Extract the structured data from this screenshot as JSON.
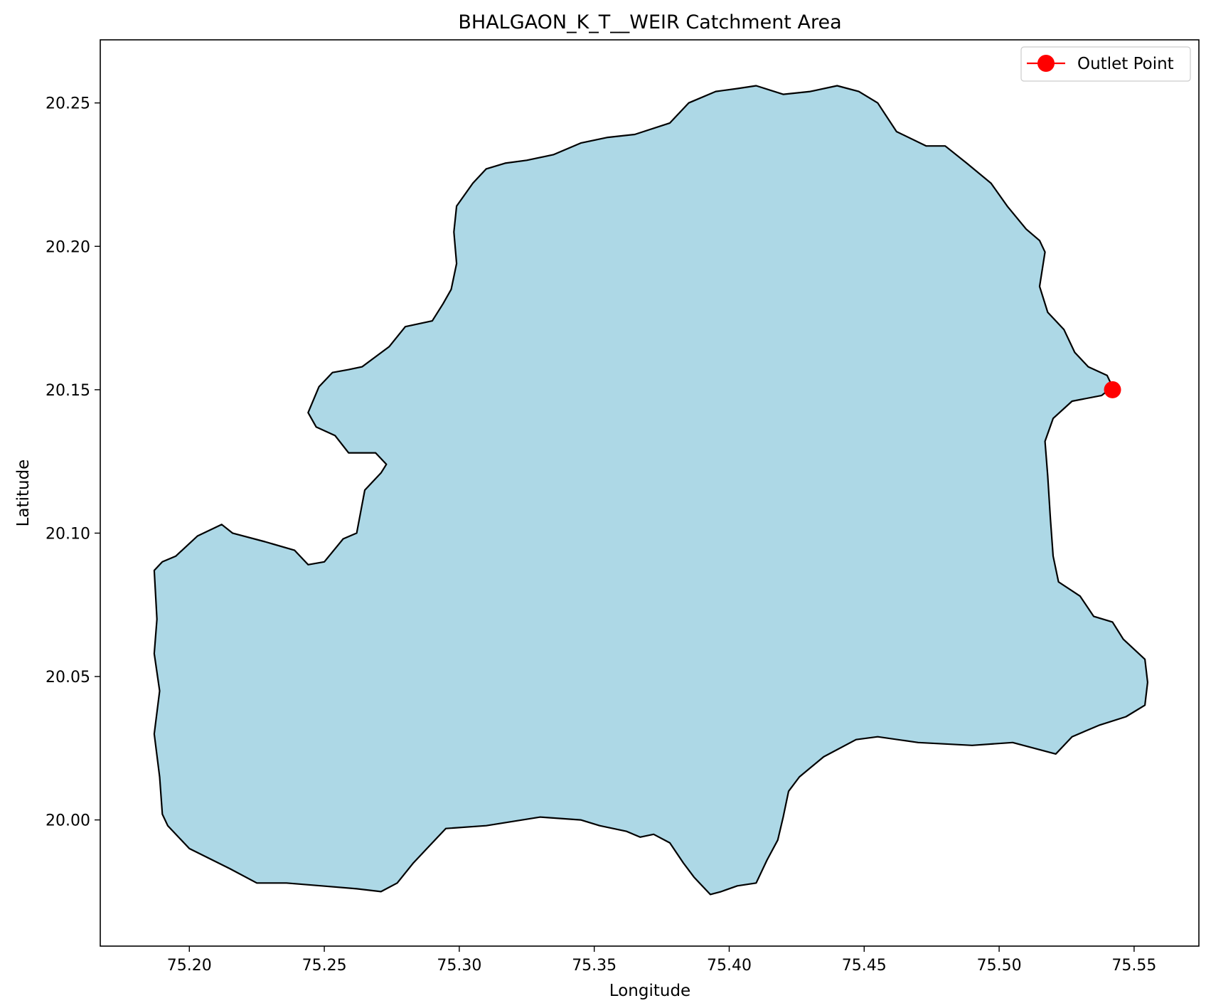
{
  "chart_data": {
    "type": "map",
    "title": "BHALGAON_K_T__WEIR Catchment Area",
    "xlabel": "Longitude",
    "ylabel": "Latitude",
    "xlim": [
      75.167,
      75.574
    ],
    "ylim": [
      19.956,
      20.272
    ],
    "x_ticks": [
      75.2,
      75.25,
      75.3,
      75.35,
      75.4,
      75.45,
      75.5,
      75.55
    ],
    "x_tick_labels": [
      "75.20",
      "75.25",
      "75.30",
      "75.35",
      "75.40",
      "75.45",
      "75.50",
      "75.55"
    ],
    "y_ticks": [
      20.0,
      20.05,
      20.1,
      20.15,
      20.2,
      20.25
    ],
    "y_tick_labels": [
      "20.00",
      "20.05",
      "20.10",
      "20.15",
      "20.20",
      "20.25"
    ],
    "grid": false,
    "legend_position": "top-right",
    "legend": [
      {
        "label": "Outlet Point",
        "color": "#ff0000",
        "marker": "circle"
      }
    ],
    "catchment": {
      "fill_color": "#add8e6",
      "edge_color": "#000000",
      "boundary": [
        [
          75.187,
          20.087
        ],
        [
          75.19,
          20.09
        ],
        [
          75.195,
          20.092
        ],
        [
          75.203,
          20.099
        ],
        [
          75.212,
          20.103
        ],
        [
          75.216,
          20.1
        ],
        [
          75.228,
          20.097
        ],
        [
          75.239,
          20.094
        ],
        [
          75.244,
          20.089
        ],
        [
          75.25,
          20.09
        ],
        [
          75.257,
          20.098
        ],
        [
          75.262,
          20.1
        ],
        [
          75.265,
          20.115
        ],
        [
          75.271,
          20.121
        ],
        [
          75.273,
          20.124
        ],
        [
          75.269,
          20.128
        ],
        [
          75.259,
          20.128
        ],
        [
          75.254,
          20.134
        ],
        [
          75.247,
          20.137
        ],
        [
          75.244,
          20.142
        ],
        [
          75.248,
          20.151
        ],
        [
          75.253,
          20.156
        ],
        [
          75.259,
          20.157
        ],
        [
          75.264,
          20.158
        ],
        [
          75.274,
          20.165
        ],
        [
          75.28,
          20.172
        ],
        [
          75.29,
          20.174
        ],
        [
          75.294,
          20.18
        ],
        [
          75.297,
          20.185
        ],
        [
          75.299,
          20.194
        ],
        [
          75.298,
          20.205
        ],
        [
          75.299,
          20.214
        ],
        [
          75.305,
          20.222
        ],
        [
          75.31,
          20.227
        ],
        [
          75.317,
          20.229
        ],
        [
          75.325,
          20.23
        ],
        [
          75.335,
          20.232
        ],
        [
          75.345,
          20.236
        ],
        [
          75.355,
          20.238
        ],
        [
          75.365,
          20.239
        ],
        [
          75.378,
          20.243
        ],
        [
          75.385,
          20.25
        ],
        [
          75.395,
          20.254
        ],
        [
          75.403,
          20.255
        ],
        [
          75.41,
          20.256
        ],
        [
          75.42,
          20.253
        ],
        [
          75.43,
          20.254
        ],
        [
          75.44,
          20.256
        ],
        [
          75.448,
          20.254
        ],
        [
          75.455,
          20.25
        ],
        [
          75.462,
          20.24
        ],
        [
          75.473,
          20.235
        ],
        [
          75.48,
          20.235
        ],
        [
          75.488,
          20.229
        ],
        [
          75.497,
          20.222
        ],
        [
          75.503,
          20.214
        ],
        [
          75.51,
          20.206
        ],
        [
          75.515,
          20.202
        ],
        [
          75.517,
          20.198
        ],
        [
          75.515,
          20.186
        ],
        [
          75.518,
          20.177
        ],
        [
          75.524,
          20.171
        ],
        [
          75.528,
          20.163
        ],
        [
          75.533,
          20.158
        ],
        [
          75.54,
          20.155
        ],
        [
          75.542,
          20.151
        ],
        [
          75.538,
          20.148
        ],
        [
          75.527,
          20.146
        ],
        [
          75.52,
          20.14
        ],
        [
          75.517,
          20.132
        ],
        [
          75.518,
          20.12
        ],
        [
          75.519,
          20.105
        ],
        [
          75.52,
          20.092
        ],
        [
          75.522,
          20.083
        ],
        [
          75.53,
          20.078
        ],
        [
          75.535,
          20.071
        ],
        [
          75.542,
          20.069
        ],
        [
          75.546,
          20.063
        ],
        [
          75.554,
          20.056
        ],
        [
          75.555,
          20.048
        ],
        [
          75.554,
          20.04
        ],
        [
          75.547,
          20.036
        ],
        [
          75.537,
          20.033
        ],
        [
          75.527,
          20.029
        ],
        [
          75.521,
          20.023
        ],
        [
          75.505,
          20.027
        ],
        [
          75.49,
          20.026
        ],
        [
          75.47,
          20.027
        ],
        [
          75.455,
          20.029
        ],
        [
          75.447,
          20.028
        ],
        [
          75.435,
          20.022
        ],
        [
          75.426,
          20.015
        ],
        [
          75.422,
          20.01
        ],
        [
          75.42,
          20.001
        ],
        [
          75.418,
          19.993
        ],
        [
          75.414,
          19.986
        ],
        [
          75.41,
          19.978
        ],
        [
          75.403,
          19.977
        ],
        [
          75.397,
          19.975
        ],
        [
          75.393,
          19.974
        ],
        [
          75.387,
          19.98
        ],
        [
          75.383,
          19.985
        ],
        [
          75.378,
          19.992
        ],
        [
          75.372,
          19.995
        ],
        [
          75.367,
          19.994
        ],
        [
          75.362,
          19.996
        ],
        [
          75.352,
          19.998
        ],
        [
          75.345,
          20.0
        ],
        [
          75.33,
          20.001
        ],
        [
          75.31,
          19.998
        ],
        [
          75.295,
          19.997
        ],
        [
          75.289,
          19.991
        ],
        [
          75.283,
          19.985
        ],
        [
          75.277,
          19.978
        ],
        [
          75.271,
          19.975
        ],
        [
          75.262,
          19.976
        ],
        [
          75.249,
          19.977
        ],
        [
          75.236,
          19.978
        ],
        [
          75.225,
          19.978
        ],
        [
          75.215,
          19.983
        ],
        [
          75.2,
          19.99
        ],
        [
          75.192,
          19.998
        ],
        [
          75.19,
          20.002
        ],
        [
          75.189,
          20.015
        ],
        [
          75.187,
          20.03
        ],
        [
          75.189,
          20.045
        ],
        [
          75.187,
          20.058
        ],
        [
          75.188,
          20.07
        ],
        [
          75.187,
          20.087
        ]
      ]
    },
    "outlet": {
      "lon": 75.542,
      "lat": 20.15,
      "color": "#ff0000"
    }
  }
}
